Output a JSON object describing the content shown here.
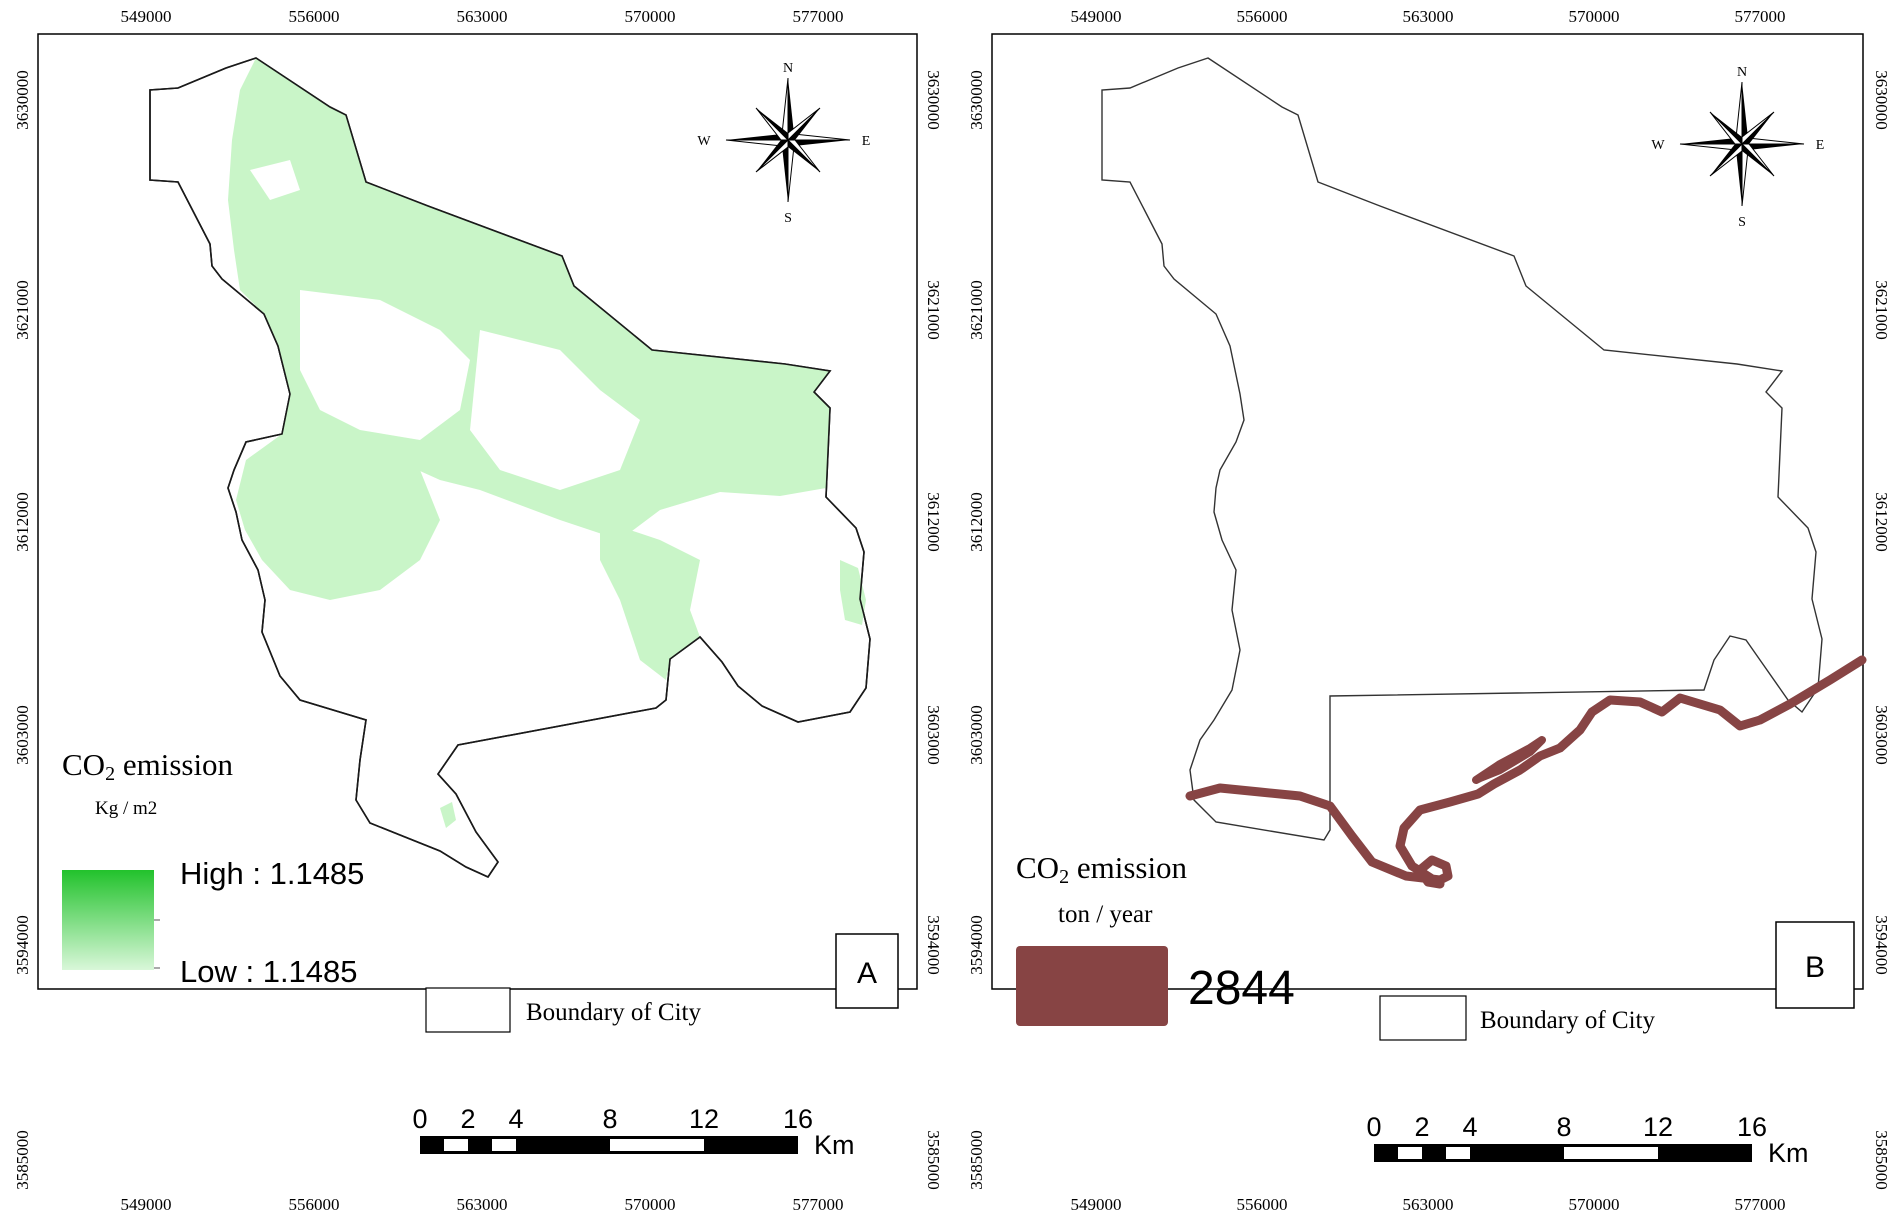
{
  "maps": [
    {
      "id": "A",
      "x_ticks": [
        "549000",
        "556000",
        "563000",
        "570000",
        "577000"
      ],
      "y_ticks": [
        "3630000",
        "3621000",
        "3612000",
        "3603000",
        "3594000",
        "3585000"
      ],
      "legend": {
        "title_main": "CO",
        "title_sub": "2",
        "title_rest": " emission",
        "unit": "Kg / m2",
        "high_label": "High : 1.1485",
        "low_label": "Low : 1.1485",
        "gradient_top_color": "#22c22c",
        "gradient_bottom_color": "#d9f7d9"
      },
      "boundary_label": "Boundary of City",
      "panel_label": "A",
      "fill_color": "#c9f5c8"
    },
    {
      "id": "B",
      "x_ticks": [
        "549000",
        "556000",
        "563000",
        "570000",
        "577000"
      ],
      "y_ticks": [
        "3630000",
        "3621000",
        "3612000",
        "3603000",
        "3594000",
        "3585000"
      ],
      "legend": {
        "title_main": "CO",
        "title_sub": "2",
        "title_rest": " emission",
        "unit": "ton / year",
        "value_label": "2844",
        "swatch_color": "#874444"
      },
      "boundary_label": "Boundary of City",
      "panel_label": "B",
      "road_color": "#874444"
    }
  ],
  "compass": {
    "n": "N",
    "s": "S",
    "e": "E",
    "w": "W"
  },
  "scale_bar": {
    "labels": [
      "0",
      "2",
      "4",
      "8",
      "12",
      "16"
    ],
    "unit": "Km"
  }
}
